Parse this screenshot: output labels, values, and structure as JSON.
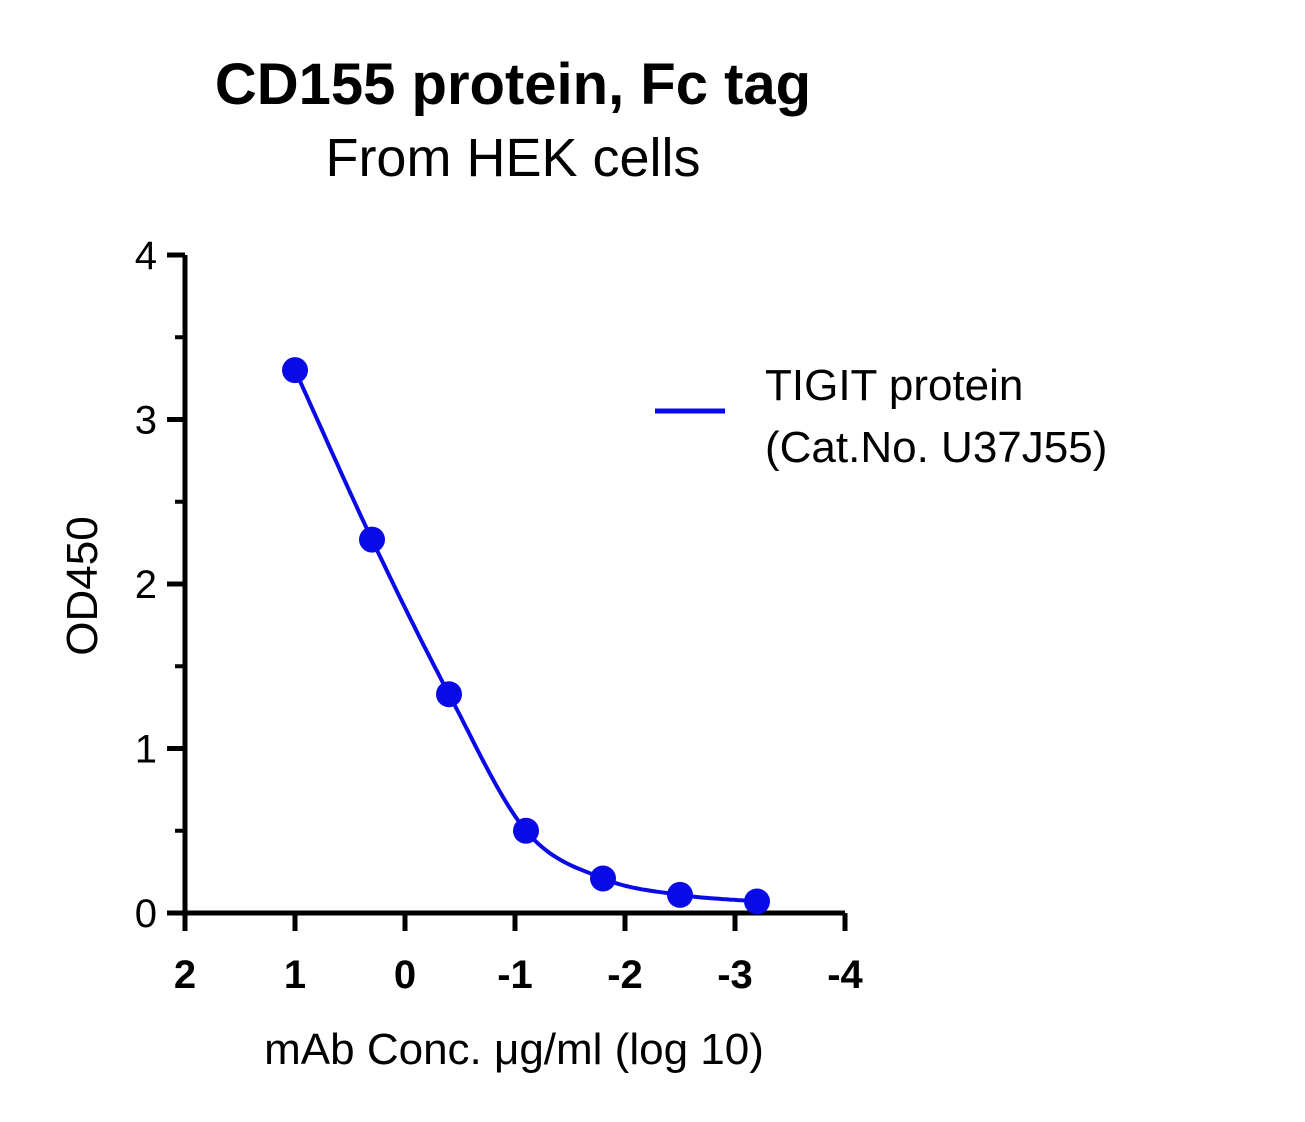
{
  "chart_data": {
    "type": "line",
    "title": "CD155 protein, Fc tag",
    "subtitle": "From HEK cells",
    "xlabel": "mAb Conc. μg/ml (log 10)",
    "ylabel": "OD450",
    "xlim": [
      2,
      -4
    ],
    "ylim": [
      0,
      4
    ],
    "xticks": [
      2,
      1,
      0,
      -1,
      -2,
      -3,
      -4
    ],
    "xtick_labels": [
      "2",
      "1",
      "0",
      "-1",
      "-2",
      "-3",
      "-4"
    ],
    "yticks": [
      0,
      1,
      2,
      3,
      4
    ],
    "ytick_labels": [
      "0",
      "1",
      "2",
      "3",
      "4"
    ],
    "grid": false,
    "legend_position": "top-right",
    "series": [
      {
        "name": "TIGIT protein\n(Cat.No. U37J55)",
        "legend_lines": [
          "TIGIT protein",
          "(Cat.No. U37J55)"
        ],
        "color": "#0a0ae6",
        "x": [
          1.0,
          0.3,
          -0.4,
          -1.1,
          -1.8,
          -2.5,
          -3.2
        ],
        "y": [
          3.3,
          2.27,
          1.33,
          0.5,
          0.21,
          0.11,
          0.07
        ]
      }
    ]
  }
}
